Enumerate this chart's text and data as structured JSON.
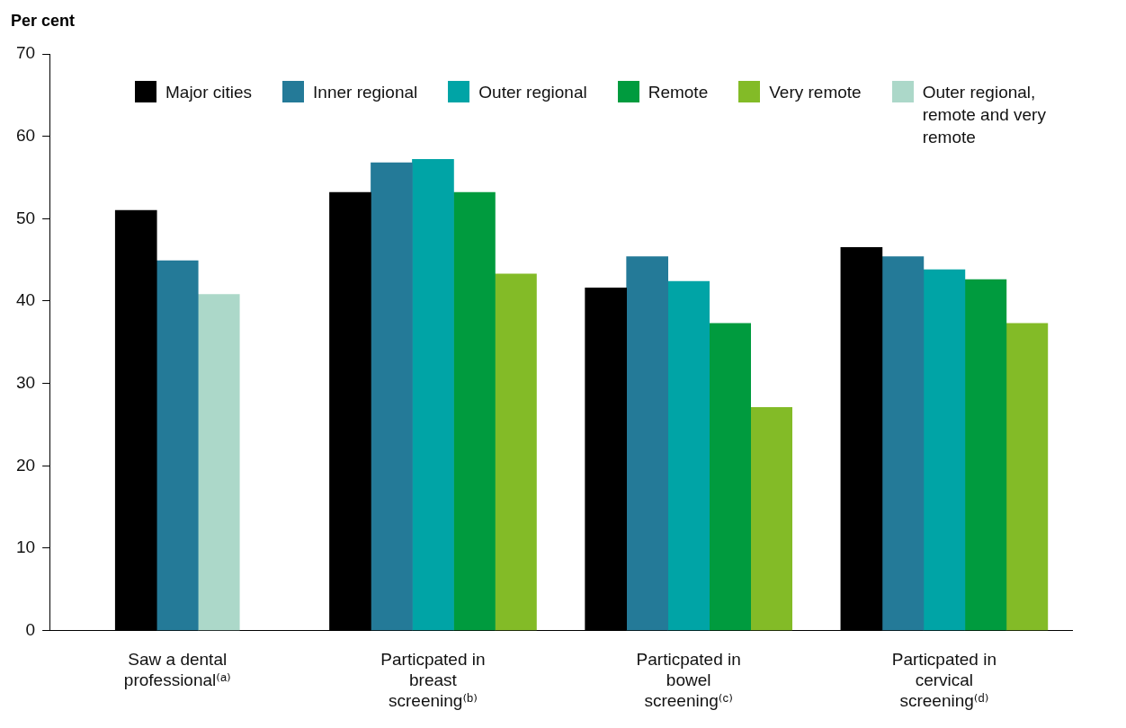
{
  "chart_data": {
    "type": "bar",
    "ylabel": "Per cent",
    "categories": [
      "Saw a dental professional⁽ᵃ⁾",
      "Particpated in breast screening⁽ᵇ⁾",
      "Particpated in bowel screening⁽ᶜ⁾",
      "Particpated in cervical screening⁽ᵈ⁾"
    ],
    "series": [
      {
        "name": "Major cities",
        "color": "#000000",
        "values": [
          51.0,
          53.2,
          41.6,
          46.5
        ]
      },
      {
        "name": "Inner regional",
        "color": "#247a98",
        "values": [
          44.9,
          56.8,
          45.4,
          45.4
        ]
      },
      {
        "name": "Outer regional",
        "color": "#00a4a6",
        "values": [
          null,
          57.2,
          42.4,
          43.8
        ]
      },
      {
        "name": "Remote",
        "color": "#009b3e",
        "values": [
          null,
          53.2,
          37.3,
          42.6
        ]
      },
      {
        "name": "Very remote",
        "color": "#83bb27",
        "values": [
          null,
          43.3,
          27.1,
          37.3
        ]
      },
      {
        "name": "Outer regional, remote and very remote",
        "color": "#acd8c9",
        "values": [
          40.8,
          null,
          null,
          null
        ]
      }
    ],
    "ylim": [
      0,
      70
    ],
    "yticks": [
      0,
      10,
      20,
      30,
      40,
      50,
      60,
      70
    ],
    "legend": "top"
  }
}
